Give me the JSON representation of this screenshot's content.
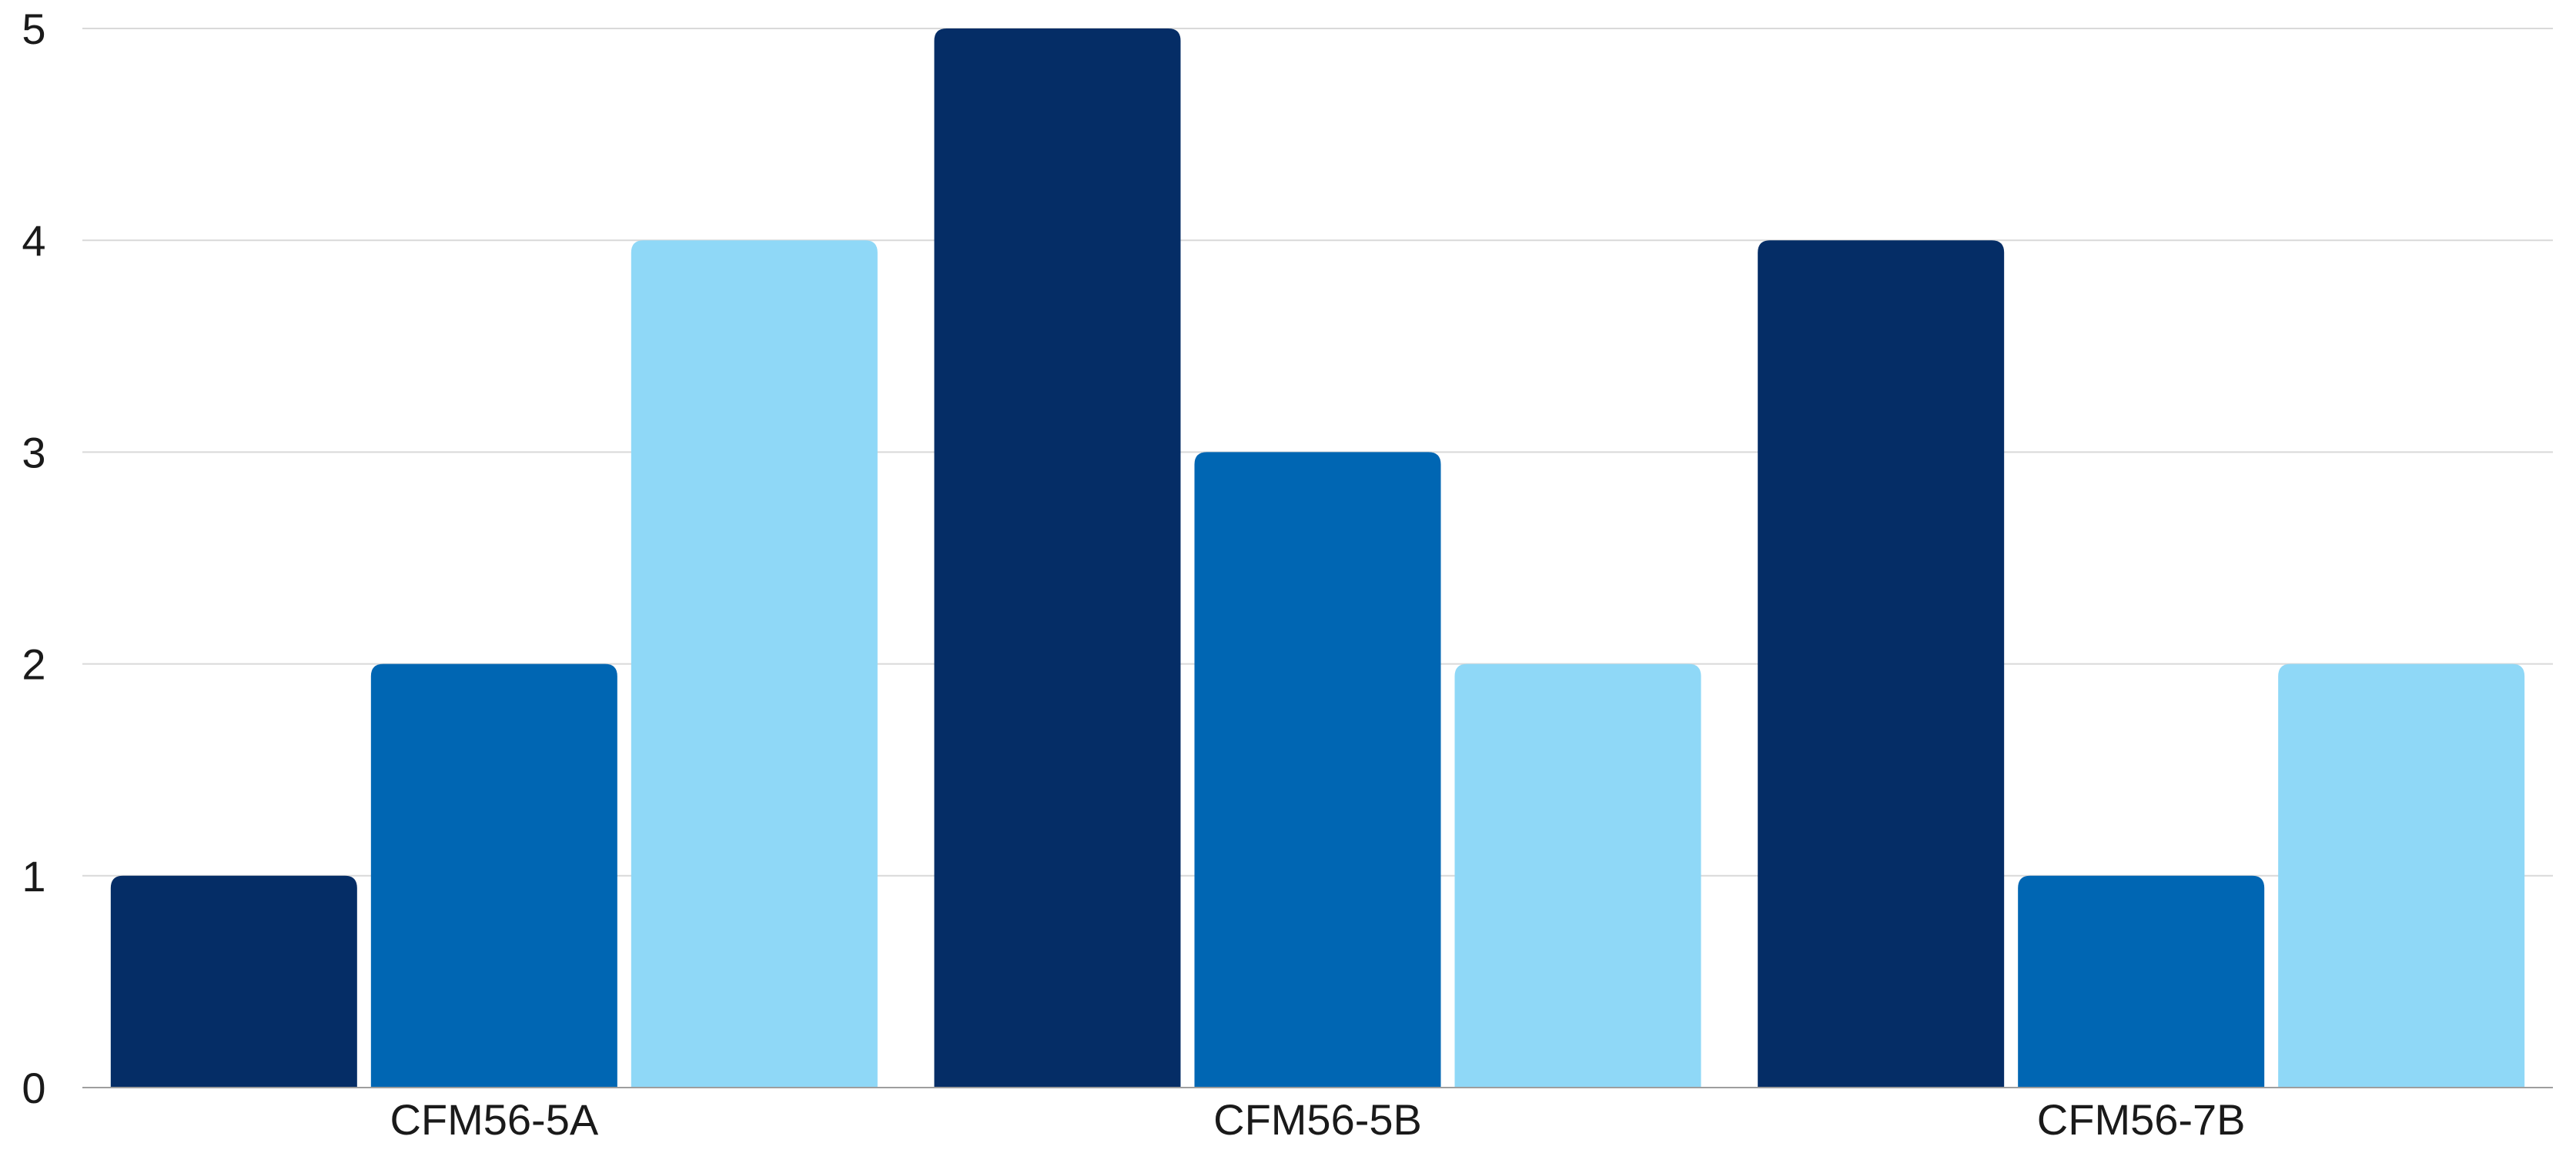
{
  "chart_data": {
    "type": "bar",
    "categories": [
      "CFM56-5A",
      "CFM56-5B",
      "CFM56-7B"
    ],
    "series": [
      {
        "values": [
          1,
          5,
          4
        ],
        "color": "#052d66"
      },
      {
        "values": [
          2,
          3,
          1
        ],
        "color": "#0066b3"
      },
      {
        "values": [
          4,
          2,
          2
        ],
        "color": "#8fd8f7"
      }
    ],
    "yticks": [
      "0",
      "1",
      "2",
      "3",
      "4",
      "5"
    ],
    "ylim": [
      0,
      5
    ],
    "grid": true,
    "legend": "none",
    "title": "",
    "xlabel": "",
    "ylabel": ""
  }
}
